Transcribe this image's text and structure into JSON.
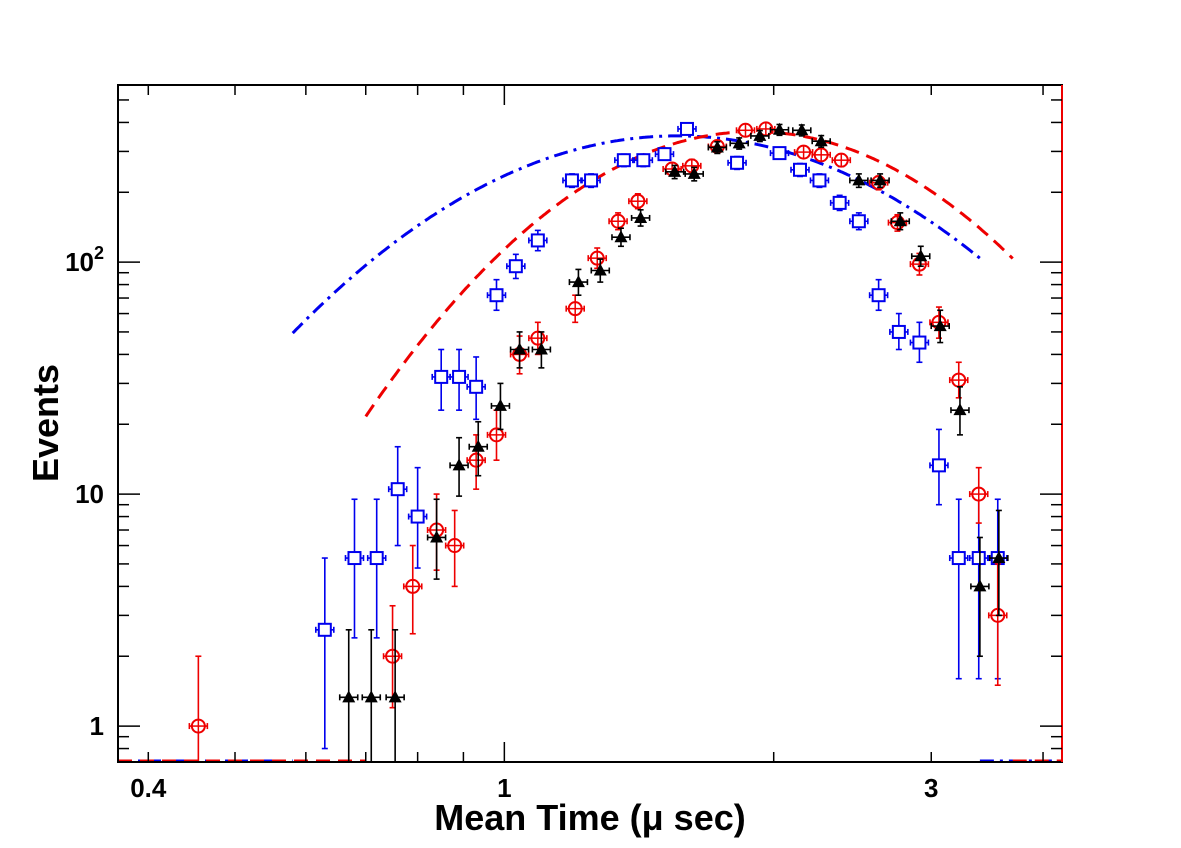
{
  "chart_data": {
    "type": "scatter",
    "title": "",
    "xlabel": "Mean Time (μ sec)",
    "ylabel": "Events",
    "x_scale": "log",
    "y_scale": "log",
    "xlim": [
      0.37,
      4.2
    ],
    "ylim": [
      0.7,
      580
    ],
    "x_tick_labels": [
      {
        "value": 0.4,
        "text": "0.4"
      },
      {
        "value": 1,
        "text": "1"
      },
      {
        "value": 3,
        "text": "3"
      }
    ],
    "y_tick_labels": [
      {
        "value": 1,
        "base": "1",
        "exp": ""
      },
      {
        "value": 10,
        "base": "10",
        "exp": ""
      },
      {
        "value": 100,
        "base": "10",
        "exp": "2"
      }
    ],
    "grid": false,
    "legend": "none",
    "series": [
      {
        "color": "#0000ee",
        "marker": "open-square",
        "fit_style": "dash-dot",
        "fit": {
          "A": 350,
          "mu": 1.56,
          "sigma": 0.5,
          "xmin": 0.58,
          "xmax": 3.4
        },
        "points": [
          {
            "x": 0.63,
            "y": 2.6,
            "lo": 0.8,
            "hi": 5.3
          },
          {
            "x": 0.68,
            "y": 5.3,
            "lo": 2.4,
            "hi": 9.5
          },
          {
            "x": 0.72,
            "y": 5.3,
            "lo": 2.4,
            "hi": 9.5
          },
          {
            "x": 0.76,
            "y": 10.5,
            "lo": 6,
            "hi": 16
          },
          {
            "x": 0.8,
            "y": 8,
            "lo": 4.8,
            "hi": 13
          },
          {
            "x": 0.85,
            "y": 32,
            "lo": 23,
            "hi": 42
          },
          {
            "x": 0.89,
            "y": 32,
            "lo": 23,
            "hi": 42
          },
          {
            "x": 0.93,
            "y": 29,
            "lo": 21,
            "hi": 39
          },
          {
            "x": 0.98,
            "y": 72,
            "lo": 62,
            "hi": 84
          },
          {
            "x": 1.03,
            "y": 96,
            "lo": 85,
            "hi": 108
          },
          {
            "x": 1.09,
            "y": 124,
            "lo": 112,
            "hi": 137
          },
          {
            "x": 1.19,
            "y": 225,
            "lo": 210,
            "hi": 240
          },
          {
            "x": 1.25,
            "y": 225,
            "lo": 210,
            "hi": 240
          },
          {
            "x": 1.36,
            "y": 275,
            "lo": 258,
            "hi": 292
          },
          {
            "x": 1.43,
            "y": 275,
            "lo": 258,
            "hi": 292
          },
          {
            "x": 1.51,
            "y": 292,
            "lo": 275,
            "hi": 310
          },
          {
            "x": 1.6,
            "y": 375,
            "lo": 355,
            "hi": 395
          },
          {
            "x": 1.82,
            "y": 268,
            "lo": 251,
            "hi": 285
          },
          {
            "x": 2.03,
            "y": 295,
            "lo": 278,
            "hi": 312
          },
          {
            "x": 2.14,
            "y": 250,
            "lo": 234,
            "hi": 266
          },
          {
            "x": 2.25,
            "y": 225,
            "lo": 210,
            "hi": 240
          },
          {
            "x": 2.37,
            "y": 180,
            "lo": 167,
            "hi": 194
          },
          {
            "x": 2.49,
            "y": 150,
            "lo": 138,
            "hi": 163
          },
          {
            "x": 2.62,
            "y": 72,
            "lo": 62,
            "hi": 84
          },
          {
            "x": 2.76,
            "y": 50,
            "lo": 42,
            "hi": 60
          },
          {
            "x": 2.91,
            "y": 45,
            "lo": 37,
            "hi": 55
          },
          {
            "x": 3.06,
            "y": 13.3,
            "lo": 9,
            "hi": 19
          },
          {
            "x": 3.22,
            "y": 5.3,
            "lo": 1.6,
            "hi": 9.5
          },
          {
            "x": 3.39,
            "y": 5.3,
            "lo": 1.6,
            "hi": 9.5
          },
          {
            "x": 3.56,
            "y": 5.3,
            "lo": 1.6,
            "hi": 9.5
          }
        ]
      },
      {
        "color": "#ee0000",
        "marker": "open-circle-cross",
        "fit_style": "dashed",
        "fit": {
          "A": 365,
          "mu": 1.9,
          "sigma": 0.42,
          "xmin": 0.7,
          "xmax": 3.7
        },
        "points": [
          {
            "x": 0.455,
            "y": 1,
            "lo": 0.7,
            "hi": 2
          },
          {
            "x": 0.75,
            "y": 2,
            "lo": 1.2,
            "hi": 3.3
          },
          {
            "x": 0.79,
            "y": 4,
            "lo": 2.5,
            "hi": 6
          },
          {
            "x": 0.84,
            "y": 7,
            "lo": 4.7,
            "hi": 10
          },
          {
            "x": 0.88,
            "y": 6,
            "lo": 4,
            "hi": 8.5
          },
          {
            "x": 0.93,
            "y": 14,
            "lo": 10.5,
            "hi": 18
          },
          {
            "x": 0.98,
            "y": 18,
            "lo": 14,
            "hi": 23
          },
          {
            "x": 1.04,
            "y": 40,
            "lo": 33,
            "hi": 48
          },
          {
            "x": 1.09,
            "y": 47,
            "lo": 40,
            "hi": 55
          },
          {
            "x": 1.2,
            "y": 63,
            "lo": 55,
            "hi": 72
          },
          {
            "x": 1.27,
            "y": 104,
            "lo": 94,
            "hi": 115
          },
          {
            "x": 1.34,
            "y": 150,
            "lo": 138,
            "hi": 163
          },
          {
            "x": 1.41,
            "y": 183,
            "lo": 170,
            "hi": 197
          },
          {
            "x": 1.54,
            "y": 252,
            "lo": 236,
            "hi": 268
          },
          {
            "x": 1.62,
            "y": 260,
            "lo": 244,
            "hi": 277
          },
          {
            "x": 1.73,
            "y": 315,
            "lo": 297,
            "hi": 333
          },
          {
            "x": 1.86,
            "y": 370,
            "lo": 350,
            "hi": 390
          },
          {
            "x": 1.96,
            "y": 375,
            "lo": 355,
            "hi": 395
          },
          {
            "x": 2.16,
            "y": 298,
            "lo": 281,
            "hi": 315
          },
          {
            "x": 2.26,
            "y": 290,
            "lo": 273,
            "hi": 307
          },
          {
            "x": 2.38,
            "y": 275,
            "lo": 258,
            "hi": 292
          },
          {
            "x": 2.62,
            "y": 220,
            "lo": 205,
            "hi": 235
          },
          {
            "x": 2.75,
            "y": 148,
            "lo": 136,
            "hi": 160
          },
          {
            "x": 2.91,
            "y": 98,
            "lo": 88,
            "hi": 109
          },
          {
            "x": 3.06,
            "y": 55,
            "lo": 47,
            "hi": 64
          },
          {
            "x": 3.22,
            "y": 31,
            "lo": 26,
            "hi": 37
          },
          {
            "x": 3.39,
            "y": 10,
            "lo": 7.5,
            "hi": 13
          },
          {
            "x": 3.56,
            "y": 3,
            "lo": 1.5,
            "hi": 5
          }
        ]
      },
      {
        "color": "#000000",
        "marker": "filled-triangle",
        "fit_style": "none",
        "points": [
          {
            "x": 0.67,
            "y": 1.33,
            "lo": 0.7,
            "hi": 2.6
          },
          {
            "x": 0.71,
            "y": 1.33,
            "lo": 0.7,
            "hi": 2.6
          },
          {
            "x": 0.755,
            "y": 1.33,
            "lo": 0.7,
            "hi": 2.6
          },
          {
            "x": 0.84,
            "y": 6.5,
            "lo": 4.3,
            "hi": 9.5
          },
          {
            "x": 0.89,
            "y": 13.3,
            "lo": 9.8,
            "hi": 17.5
          },
          {
            "x": 0.935,
            "y": 16,
            "lo": 12,
            "hi": 20.5
          },
          {
            "x": 0.99,
            "y": 24,
            "lo": 19,
            "hi": 30
          },
          {
            "x": 1.04,
            "y": 42,
            "lo": 35,
            "hi": 50
          },
          {
            "x": 1.1,
            "y": 42,
            "lo": 35,
            "hi": 50
          },
          {
            "x": 1.21,
            "y": 82,
            "lo": 72,
            "hi": 93
          },
          {
            "x": 1.28,
            "y": 92,
            "lo": 82,
            "hi": 103
          },
          {
            "x": 1.35,
            "y": 128,
            "lo": 117,
            "hi": 140
          },
          {
            "x": 1.42,
            "y": 155,
            "lo": 143,
            "hi": 168
          },
          {
            "x": 1.55,
            "y": 245,
            "lo": 229,
            "hi": 261
          },
          {
            "x": 1.63,
            "y": 240,
            "lo": 224,
            "hi": 256
          },
          {
            "x": 1.73,
            "y": 312,
            "lo": 294,
            "hi": 330
          },
          {
            "x": 1.83,
            "y": 325,
            "lo": 307,
            "hi": 343
          },
          {
            "x": 1.93,
            "y": 350,
            "lo": 331,
            "hi": 369
          },
          {
            "x": 2.03,
            "y": 372,
            "lo": 352,
            "hi": 392
          },
          {
            "x": 2.15,
            "y": 370,
            "lo": 350,
            "hi": 390
          },
          {
            "x": 2.26,
            "y": 332,
            "lo": 313,
            "hi": 351
          },
          {
            "x": 2.49,
            "y": 225,
            "lo": 210,
            "hi": 240
          },
          {
            "x": 2.63,
            "y": 225,
            "lo": 210,
            "hi": 240
          },
          {
            "x": 2.77,
            "y": 150,
            "lo": 138,
            "hi": 163
          },
          {
            "x": 2.92,
            "y": 106,
            "lo": 96,
            "hi": 117
          },
          {
            "x": 3.07,
            "y": 53,
            "lo": 45,
            "hi": 62
          },
          {
            "x": 3.23,
            "y": 23,
            "lo": 18,
            "hi": 29
          },
          {
            "x": 3.4,
            "y": 4,
            "lo": 2,
            "hi": 6.5
          },
          {
            "x": 3.57,
            "y": 5.3,
            "lo": 3,
            "hi": 8.5
          }
        ]
      }
    ]
  }
}
